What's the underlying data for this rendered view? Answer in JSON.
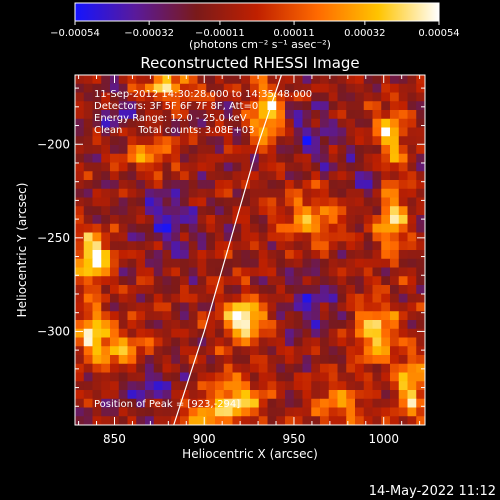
{
  "chart_data": {
    "type": "heatmap",
    "title": "Reconstructed RHESSI Image",
    "xlabel": "Heliocentric X (arcsec)",
    "ylabel": "Heliocentric Y (arcsec)",
    "xlim": [
      828,
      1023
    ],
    "ylim": [
      -350,
      -163
    ],
    "x_ticks": [
      850,
      900,
      950,
      1000
    ],
    "x_tick_labels": [
      "850",
      "900",
      "950",
      "1000"
    ],
    "y_ticks": [
      -200,
      -250,
      -300
    ],
    "y_tick_labels": [
      "−200",
      "−250",
      "−300"
    ],
    "colorbar": {
      "range": [
        -0.00054,
        0.00054
      ],
      "tick_values": [
        -0.00054,
        -0.00032,
        -0.00011,
        0.00011,
        0.00032,
        0.00054
      ],
      "tick_labels": [
        "−0.00054",
        "−0.00032",
        "−0.00011",
        "0.00011",
        "0.00032",
        "0.00054"
      ],
      "unit_label": "(photons cm⁻² s⁻¹ asec⁻²)",
      "colormap": [
        "#1414ff",
        "#5a1a9a",
        "#7a1a1a",
        "#c02000",
        "#ff6a00",
        "#ffc400",
        "#ffffff"
      ]
    },
    "annotations": [
      "11-Sep-2012 14:30:28.000 to 14:35:48.000",
      "Detectors: 3F 5F 6F 7F 8F, Att=0",
      "Energy Range: 12.0 - 25.0 keV",
      "Clean     Total counts: 3.08E+03"
    ],
    "peak_label": "Position of Peak = [923,-294]",
    "peak": [
      923,
      -294
    ],
    "limb_curve": [
      [
        883,
        -350
      ],
      [
        900,
        -300
      ],
      [
        915,
        -250
      ],
      [
        930,
        -200
      ],
      [
        943,
        -163
      ]
    ],
    "bright_sources": [
      {
        "x": 838,
        "y": -260,
        "level": 1.0,
        "sx": 7,
        "sy": 9
      },
      {
        "x": 838,
        "y": -300,
        "level": 0.8,
        "sx": 6,
        "sy": 10
      },
      {
        "x": 923,
        "y": -294,
        "level": 1.0,
        "sx": 8,
        "sy": 8
      },
      {
        "x": 918,
        "y": -335,
        "level": 0.75,
        "sx": 10,
        "sy": 8
      },
      {
        "x": 935,
        "y": -185,
        "level": 0.85,
        "sx": 6,
        "sy": 12
      },
      {
        "x": 880,
        "y": -170,
        "level": 0.7,
        "sx": 12,
        "sy": 5
      },
      {
        "x": 1003,
        "y": -195,
        "level": 0.8,
        "sx": 6,
        "sy": 10
      },
      {
        "x": 1005,
        "y": -240,
        "level": 0.7,
        "sx": 6,
        "sy": 14
      },
      {
        "x": 995,
        "y": -300,
        "level": 0.75,
        "sx": 8,
        "sy": 12
      },
      {
        "x": 1015,
        "y": -330,
        "level": 0.7,
        "sx": 6,
        "sy": 14
      },
      {
        "x": 855,
        "y": -310,
        "level": 0.55,
        "sx": 10,
        "sy": 8
      },
      {
        "x": 960,
        "y": -240,
        "level": 0.5,
        "sx": 14,
        "sy": 10
      },
      {
        "x": 975,
        "y": -340,
        "level": 0.55,
        "sx": 10,
        "sy": 8
      },
      {
        "x": 870,
        "y": -205,
        "level": 0.5,
        "sx": 10,
        "sy": 8
      },
      {
        "x": 900,
        "y": -345,
        "level": 0.5,
        "sx": 12,
        "sy": 6
      }
    ],
    "dark_regions": [
      {
        "x": 880,
        "y": -240,
        "level": 0.9,
        "sx": 12,
        "sy": 12
      },
      {
        "x": 855,
        "y": -185,
        "level": 0.7,
        "sx": 10,
        "sy": 8
      },
      {
        "x": 960,
        "y": -195,
        "level": 0.8,
        "sx": 12,
        "sy": 10
      },
      {
        "x": 870,
        "y": -330,
        "level": 0.7,
        "sx": 10,
        "sy": 10
      },
      {
        "x": 960,
        "y": -285,
        "level": 0.7,
        "sx": 10,
        "sy": 12
      },
      {
        "x": 990,
        "y": -220,
        "level": 0.6,
        "sx": 8,
        "sy": 10
      }
    ],
    "grid": false,
    "legend": "none"
  },
  "footer": {
    "timestamp": "14-May-2022 11:12"
  }
}
